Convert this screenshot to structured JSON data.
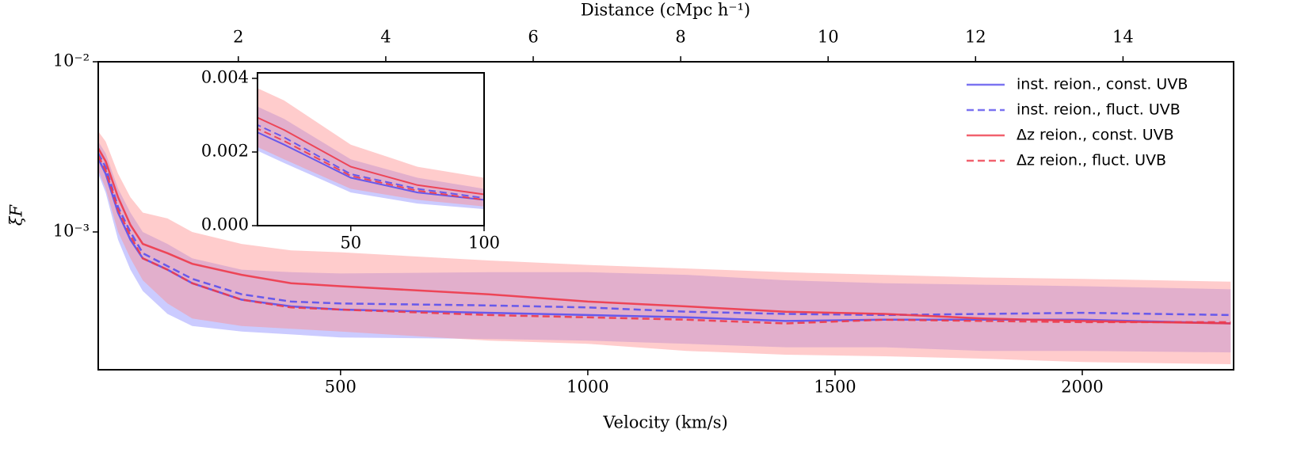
{
  "chart_data": {
    "type": "line",
    "xlabel": "Velocity (km/s)",
    "ylabel": "ξF",
    "x2label": "Distance (cMpc h⁻¹)",
    "x": [
      10,
      25,
      50,
      75,
      100,
      150,
      200,
      300,
      400,
      500,
      800,
      1000,
      1200,
      1400,
      1600,
      1800,
      2000,
      2300
    ],
    "series": [
      {
        "name": "inst. reion., const. UVB",
        "color": "#5a50ee",
        "linestyle": "solid",
        "band_color": "#8c8cff",
        "values": [
          0.0027,
          0.0022,
          0.0013,
          0.0009,
          0.0007,
          0.0006,
          0.0005,
          0.0004,
          0.000365,
          0.00035,
          0.000335,
          0.000325,
          0.000315,
          0.0003,
          0.000305,
          0.000305,
          0.000305,
          0.00029
        ],
        "lower": [
          0.0022,
          0.0017,
          0.0009,
          0.0006,
          0.00045,
          0.00033,
          0.00028,
          0.00026,
          0.00025,
          0.00024,
          0.000235,
          0.00023,
          0.00022,
          0.00021,
          0.00021,
          0.0002,
          0.0002,
          0.000196
        ],
        "upper": [
          0.0034,
          0.0029,
          0.0018,
          0.0013,
          0.001,
          0.00085,
          0.0007,
          0.0006,
          0.00058,
          0.00057,
          0.00058,
          0.00058,
          0.00056,
          0.00052,
          0.0005,
          0.00049,
          0.00048,
          0.00046
        ]
      },
      {
        "name": "inst. reion., fluct. UVB",
        "color": "#5a50ee",
        "linestyle": "dashed",
        "values": [
          0.0029,
          0.0024,
          0.0014,
          0.001,
          0.00075,
          0.00063,
          0.00053,
          0.00043,
          0.00039,
          0.00038,
          0.00037,
          0.00036,
          0.00034,
          0.00033,
          0.000325,
          0.00033,
          0.000335,
          0.000325
        ]
      },
      {
        "name": "Δz reion., const. UVB",
        "color": "#ee3a4a",
        "linestyle": "solid",
        "band_color": "#ff8f8f",
        "values": [
          0.0031,
          0.0026,
          0.0016,
          0.0011,
          0.00085,
          0.00075,
          0.00065,
          0.00056,
          0.0005,
          0.00048,
          0.00043,
          0.00039,
          0.000365,
          0.00034,
          0.00033,
          0.00031,
          0.0003,
          0.00029
        ],
        "lower": [
          0.0023,
          0.0018,
          0.001,
          0.0007,
          0.00052,
          0.00038,
          0.00031,
          0.00028,
          0.00027,
          0.00026,
          0.00023,
          0.00022,
          0.0002,
          0.00019,
          0.000186,
          0.00018,
          0.000172,
          0.000167
        ],
        "upper": [
          0.0039,
          0.0034,
          0.0022,
          0.0016,
          0.0013,
          0.0012,
          0.001,
          0.00085,
          0.00078,
          0.00076,
          0.00068,
          0.00064,
          0.00061,
          0.00058,
          0.00056,
          0.00054,
          0.00053,
          0.00051
        ]
      },
      {
        "name": "Δz reion., fluct. UVB",
        "color": "#ee3a4a",
        "linestyle": "dashed",
        "values": [
          0.0028,
          0.0023,
          0.00135,
          0.00095,
          0.0007,
          0.0006,
          0.0005,
          0.0004,
          0.00036,
          0.00035,
          0.000325,
          0.000315,
          0.000305,
          0.00029,
          0.000305,
          0.0003,
          0.000295,
          0.000295
        ]
      }
    ],
    "xlim": [
      10,
      2306
    ],
    "xticks": [
      500,
      1000,
      1500,
      2000
    ],
    "yscale": "log",
    "ylim": [
      0.000155,
      0.01
    ],
    "yticks": [
      {
        "value": 0.01,
        "label": "10⁻²"
      },
      {
        "value": 0.001,
        "label": "10⁻³"
      }
    ],
    "x2lim": [
      0.1,
      15.5
    ],
    "x2ticks": [
      2,
      4,
      6,
      8,
      10,
      12,
      14
    ],
    "legend": "upper right",
    "inset": {
      "xlim": [
        15,
        100
      ],
      "xticks": [
        50,
        100
      ],
      "ylim": [
        0,
        0.00415
      ],
      "yticks": [
        {
          "value": 0,
          "label": "0.000"
        },
        {
          "value": 0.002,
          "label": "0.002"
        },
        {
          "value": 0.004,
          "label": "0.004"
        }
      ]
    }
  }
}
